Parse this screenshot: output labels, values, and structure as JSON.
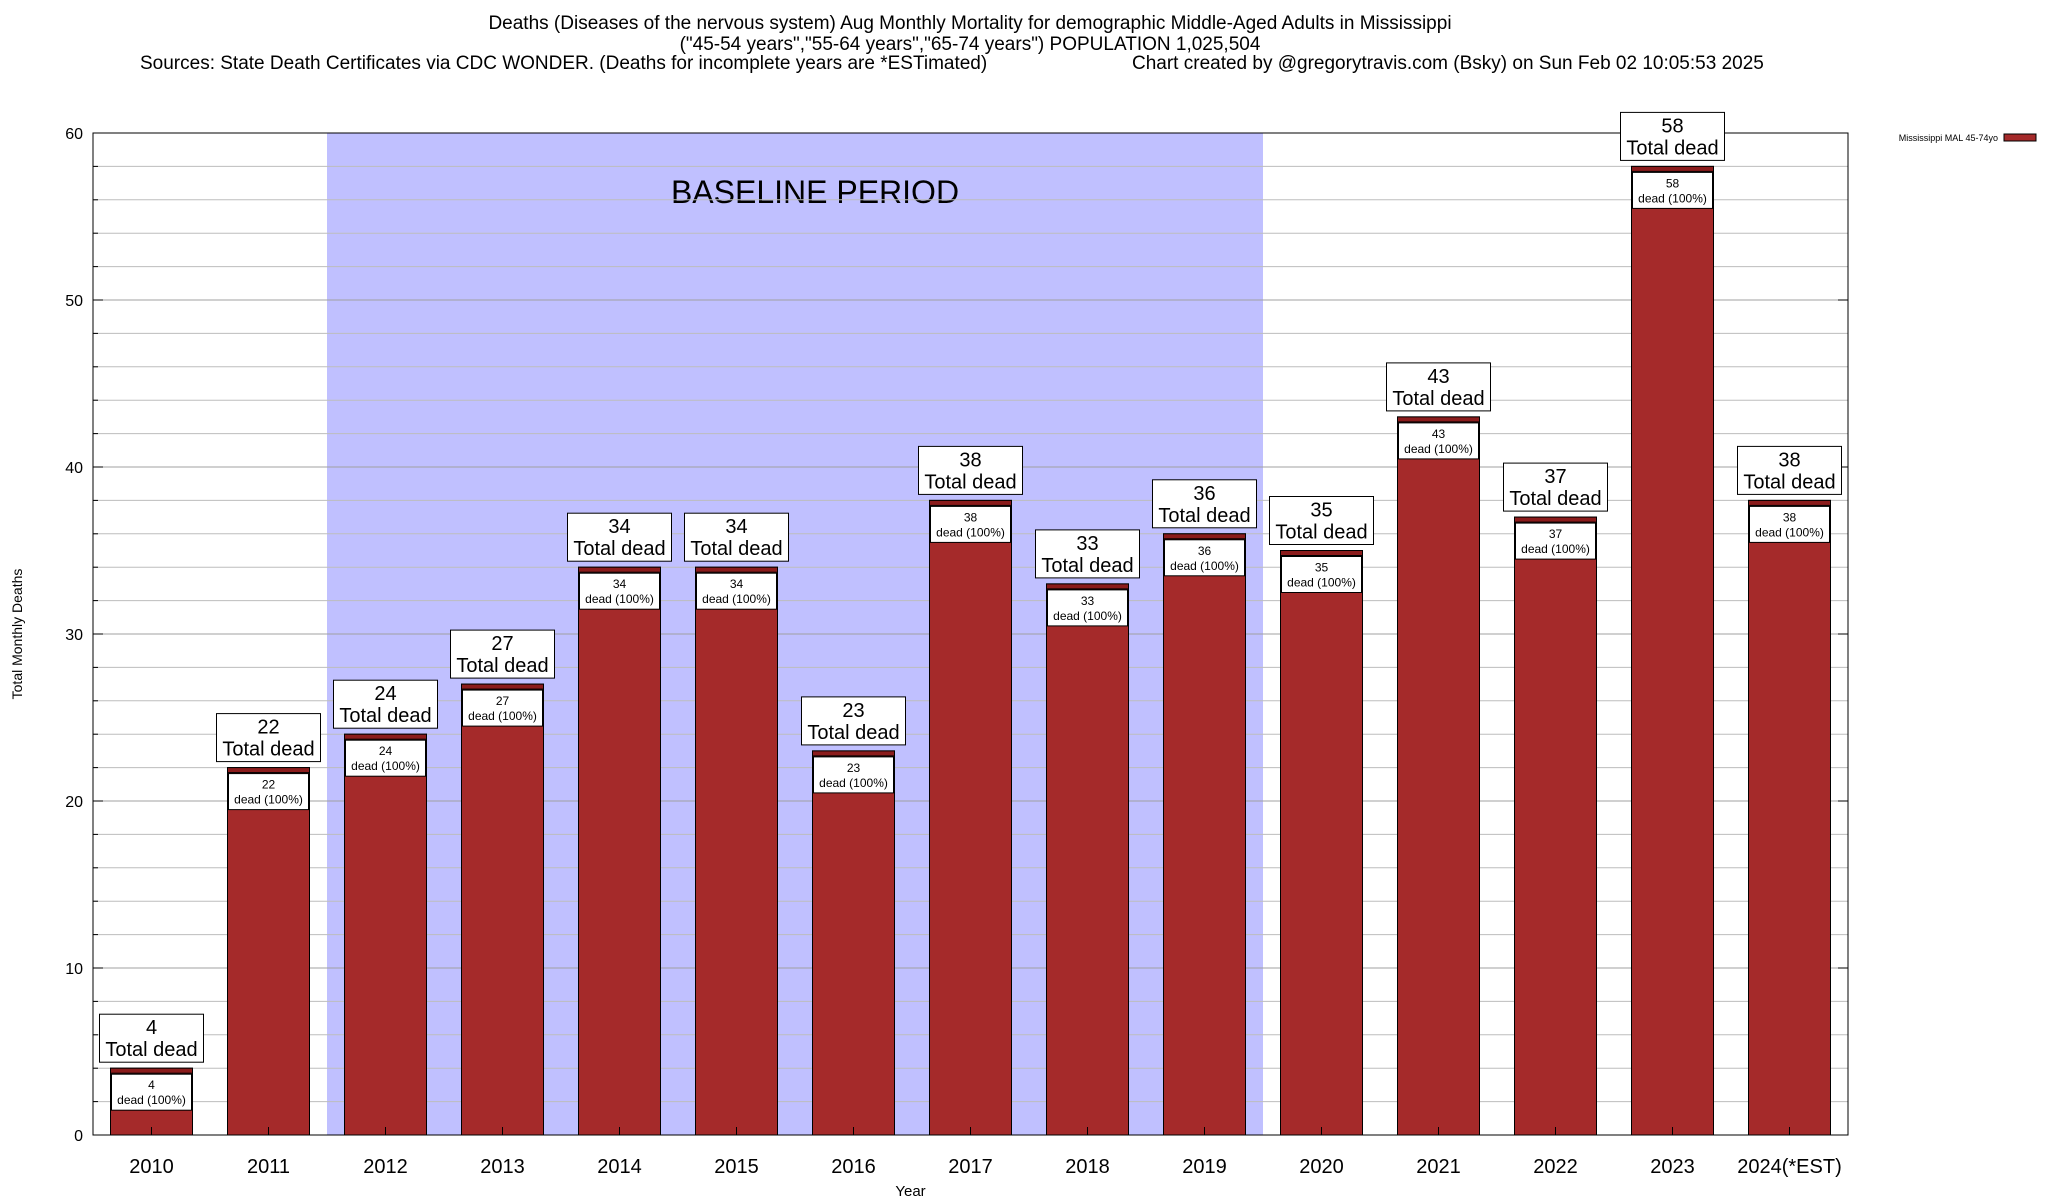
{
  "header": {
    "title_line1": "Deaths (Diseases of the nervous system) Aug Monthly Mortality for demographic Middle-Aged Adults in Mississippi",
    "title_line2": "(\"45-54 years\",\"55-64 years\",\"65-74 years\") POPULATION 1,025,504",
    "sources": "Sources: State Death Certificates via CDC WONDER. (Deaths for incomplete years are *ESTimated)",
    "credit": "Chart created by @gregorytravis.com (Bsky) on Sun Feb 02 10:05:53 2025"
  },
  "chart_data": {
    "type": "bar",
    "categories": [
      "2010",
      "2011",
      "2012",
      "2013",
      "2014",
      "2015",
      "2016",
      "2017",
      "2018",
      "2019",
      "2020",
      "2021",
      "2022",
      "2023",
      "2024(*EST)"
    ],
    "series": [
      {
        "name": "Mississippi MAL 45-74yo",
        "color": "#a52a2a",
        "values": [
          4,
          22,
          24,
          27,
          34,
          34,
          23,
          38,
          33,
          36,
          35,
          43,
          37,
          58,
          38
        ]
      }
    ],
    "top_label_text": "Total dead",
    "inner_label_text": "dead (100%)",
    "xlabel": "Year",
    "ylabel": "Total Monthly Deaths",
    "ylim": [
      0,
      60
    ],
    "yticks": [
      0,
      10,
      20,
      30,
      40,
      50,
      60
    ],
    "grid": "horizontal",
    "legend_position": "top-right",
    "baseline": {
      "label": "BASELINE PERIOD",
      "from": "2012",
      "to": "2019",
      "color": "#c0c0ff"
    },
    "bar_color": "#a52a2a"
  }
}
